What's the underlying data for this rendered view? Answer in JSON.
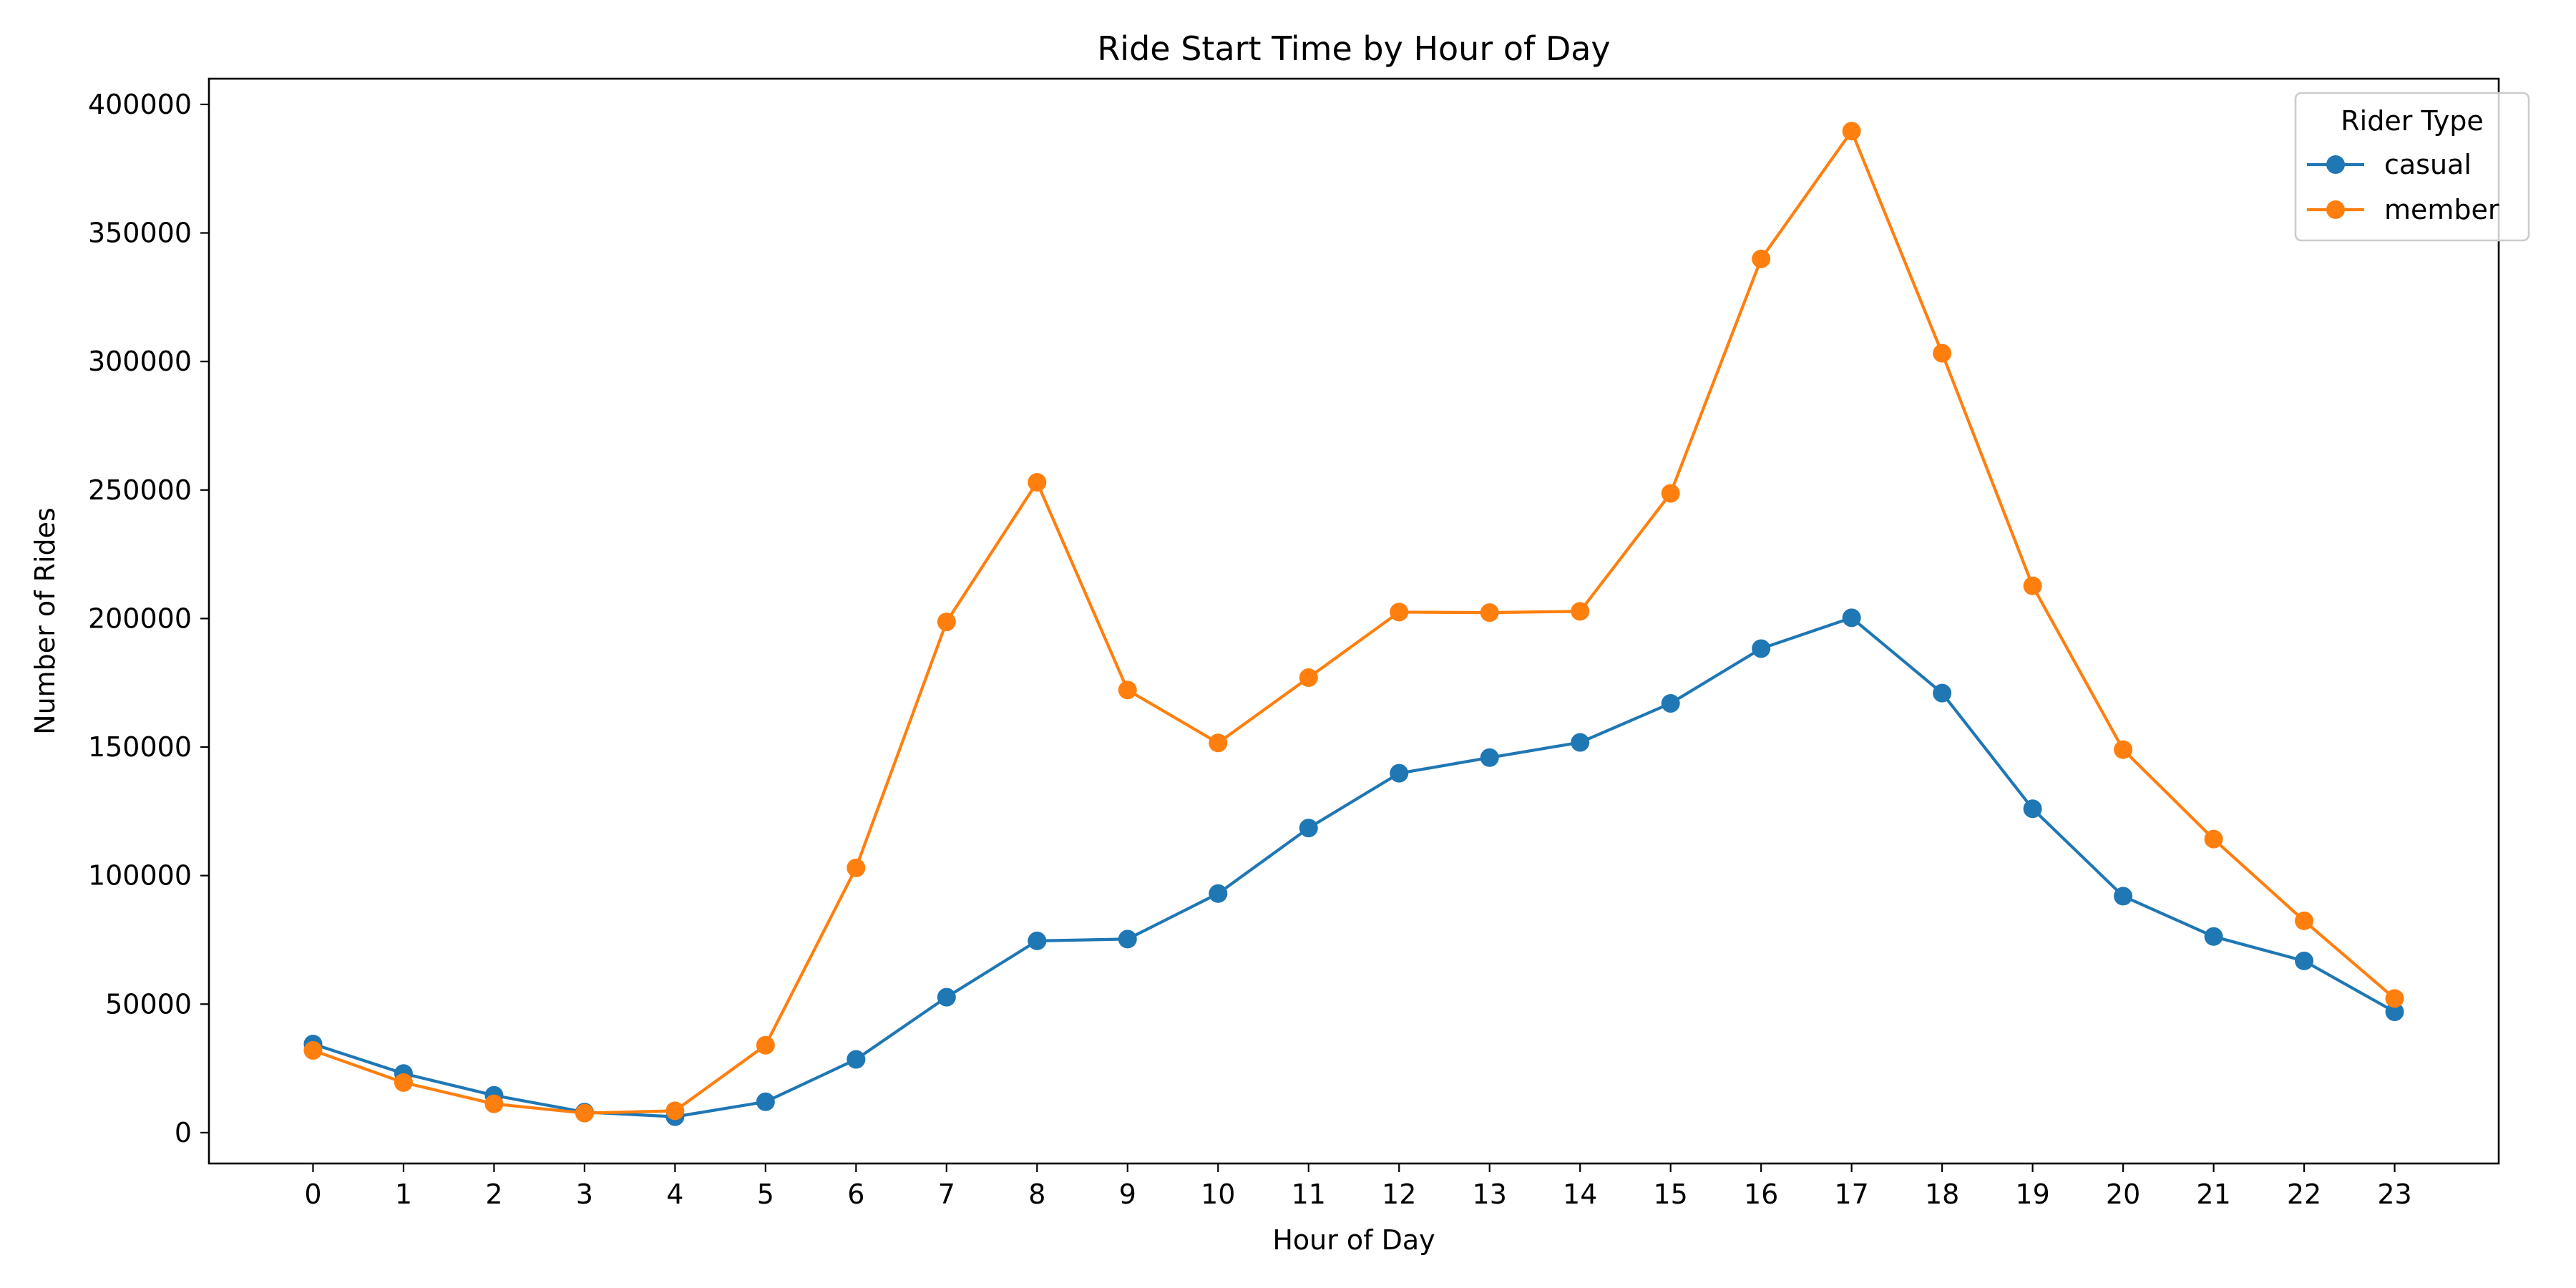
{
  "chart_data": {
    "type": "line",
    "title": "Ride Start Time by Hour of Day",
    "xlabel": "Hour of Day",
    "ylabel": "Number of Rides",
    "x": [
      0,
      1,
      2,
      3,
      4,
      5,
      6,
      7,
      8,
      9,
      10,
      11,
      12,
      13,
      14,
      15,
      16,
      17,
      18,
      19,
      20,
      21,
      22,
      23
    ],
    "x_tick_labels": [
      "0",
      "1",
      "2",
      "3",
      "4",
      "5",
      "6",
      "7",
      "8",
      "9",
      "10",
      "11",
      "12",
      "13",
      "14",
      "15",
      "16",
      "17",
      "18",
      "19",
      "20",
      "21",
      "22",
      "23"
    ],
    "xlim": [
      -1.15,
      24.15
    ],
    "ylim": [
      -12000,
      410000
    ],
    "y_ticks": [
      0,
      50000,
      100000,
      150000,
      200000,
      250000,
      300000,
      350000,
      400000
    ],
    "y_tick_labels": [
      "0",
      "50000",
      "100000",
      "150000",
      "200000",
      "250000",
      "300000",
      "350000",
      "400000"
    ],
    "grid": false,
    "legend": {
      "title": "Rider Type",
      "placement": "top-right"
    },
    "series": [
      {
        "name": "casual",
        "color": "#1f77b4",
        "marker": "circle",
        "values": [
          34500,
          23000,
          14500,
          8000,
          6200,
          12000,
          28500,
          52700,
          74600,
          75300,
          93000,
          118500,
          139800,
          145900,
          151800,
          167000,
          188300,
          200300,
          171000,
          126000,
          92000,
          76300,
          66800,
          47000
        ]
      },
      {
        "name": "member",
        "color": "#ff7f0e",
        "marker": "circle",
        "values": [
          32000,
          19500,
          11200,
          7600,
          8500,
          34000,
          103000,
          198700,
          253000,
          172200,
          151600,
          177000,
          202500,
          202300,
          202800,
          248700,
          339900,
          389600,
          303200,
          212700,
          149000,
          114200,
          82400,
          52200
        ]
      }
    ]
  }
}
